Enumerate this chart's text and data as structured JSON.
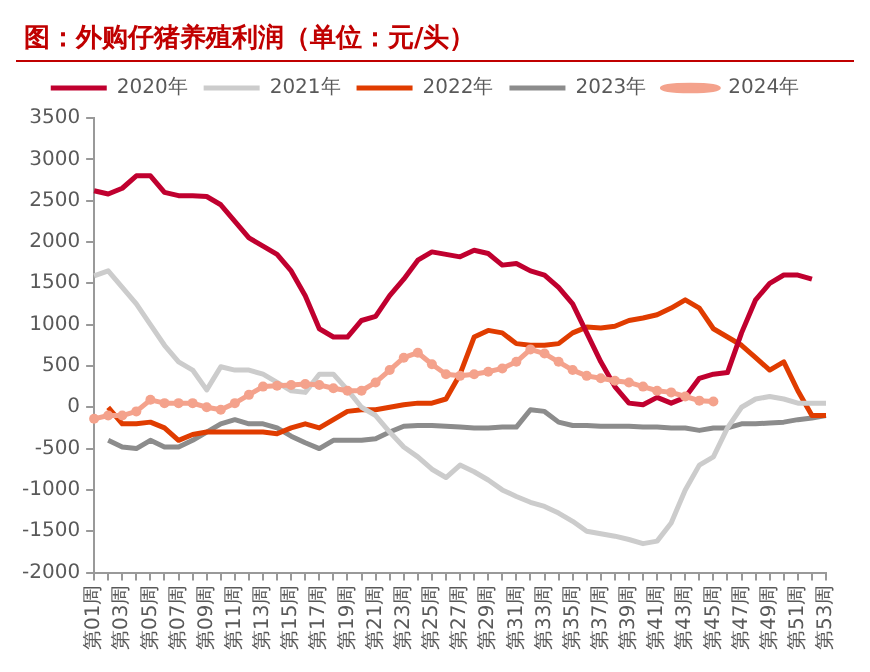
{
  "chart_data": {
    "type": "line",
    "title": "图：外购仔猪养殖利润（单位：元/头）",
    "categories": [
      "第01周",
      null,
      "第03周",
      null,
      "第05周",
      null,
      "第07周",
      null,
      "第09周",
      null,
      "第11周",
      null,
      "第13周",
      null,
      "第15周",
      null,
      "第17周",
      null,
      "第19周",
      null,
      "第21周",
      null,
      "第23周",
      null,
      "第25周",
      null,
      "第27周",
      null,
      "第29周",
      null,
      "第31周",
      null,
      "第33周",
      null,
      "第35周",
      null,
      "第37周",
      null,
      "第39周",
      null,
      "第41周",
      null,
      "第43周",
      null,
      "第45周",
      null,
      "第47周",
      null,
      "第49周",
      null,
      "第51周",
      null,
      "第53周"
    ],
    "series": [
      {
        "name": "2020年",
        "color": "#c0002f",
        "values": [
          2620,
          2580,
          2650,
          2800,
          2800,
          2600,
          2560,
          2560,
          2550,
          2450,
          2250,
          2050,
          1950,
          1850,
          1650,
          1350,
          950,
          850,
          850,
          1050,
          1100,
          1350,
          1550,
          1780,
          1880,
          1850,
          1820,
          1900,
          1860,
          1720,
          1740,
          1650,
          1600,
          1450,
          1250,
          900,
          550,
          250,
          50,
          30,
          120,
          50,
          120,
          350,
          400,
          420,
          900,
          1300,
          1500,
          1600,
          1600,
          1550,
          null
        ]
      },
      {
        "name": "2021年",
        "color": "#cccccc",
        "values": [
          1590,
          1650,
          1450,
          1250,
          1000,
          750,
          550,
          450,
          210,
          490,
          450,
          450,
          400,
          300,
          200,
          180,
          400,
          400,
          210,
          0,
          -100,
          -300,
          -480,
          -600,
          -750,
          -850,
          -700,
          -780,
          -880,
          -1000,
          -1080,
          -1150,
          -1200,
          -1280,
          -1380,
          -1500,
          -1530,
          -1560,
          -1600,
          -1650,
          -1620,
          -1400,
          -1000,
          -700,
          -600,
          -250,
          0,
          100,
          130,
          100,
          50,
          50,
          50
        ]
      },
      {
        "name": "2022年",
        "color": "#e03c00",
        "values": [
          null,
          0,
          -200,
          -200,
          -180,
          -250,
          -400,
          -330,
          -300,
          -300,
          -300,
          -300,
          -300,
          -320,
          -250,
          -200,
          -250,
          -150,
          -50,
          -30,
          -30,
          0,
          30,
          50,
          50,
          100,
          400,
          850,
          930,
          900,
          770,
          750,
          750,
          770,
          900,
          970,
          960,
          980,
          1050,
          1080,
          1120,
          1200,
          1300,
          1200,
          950,
          850,
          750,
          600,
          450,
          550,
          200,
          -100,
          -100
        ]
      },
      {
        "name": "2023年",
        "color": "#8c8c8c",
        "values": [
          null,
          -400,
          -480,
          -500,
          -400,
          -480,
          -480,
          -400,
          -300,
          -200,
          -150,
          -200,
          -200,
          -250,
          -350,
          -430,
          -500,
          -400,
          -400,
          -400,
          -380,
          -300,
          -230,
          -220,
          -220,
          -230,
          -240,
          -250,
          -250,
          -240,
          -240,
          -30,
          -50,
          -180,
          -220,
          -220,
          -230,
          -230,
          -230,
          -240,
          -240,
          -250,
          -250,
          -280,
          -250,
          -250,
          -200,
          -200,
          -190,
          -180,
          -150,
          -130,
          -100
        ]
      },
      {
        "name": "2024年",
        "color": "#f4a28c",
        "marker": "circle",
        "values": [
          -140,
          -100,
          -100,
          -50,
          90,
          50,
          50,
          50,
          0,
          -30,
          50,
          150,
          250,
          260,
          270,
          280,
          270,
          230,
          200,
          200,
          300,
          450,
          600,
          660,
          520,
          400,
          380,
          400,
          430,
          470,
          550,
          700,
          650,
          550,
          450,
          380,
          350,
          320,
          300,
          250,
          200,
          180,
          130,
          80,
          70,
          null,
          null,
          null,
          null,
          null,
          null,
          null,
          null
        ]
      }
    ],
    "ylim": [
      -2000,
      3500
    ],
    "yticks": [
      -2000,
      -1500,
      -1000,
      -500,
      0,
      500,
      1000,
      1500,
      2000,
      2500,
      3000,
      3500
    ],
    "grid": false,
    "legend": "top",
    "marker": "none"
  }
}
